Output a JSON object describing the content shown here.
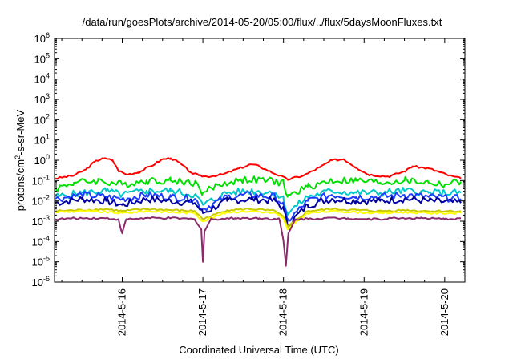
{
  "chart_data": {
    "type": "line",
    "title": "/data/run/goesPlots/archive/2014-05-20/05:00/flux/../flux/5daysMoonFluxes.txt",
    "xlabel": "Coordinated Universal Time (UTC)",
    "ylabel": {
      "prefix": "protons/cm",
      "sup": "2",
      "suffix": "-s-sr-MeV"
    },
    "yscale": "log",
    "ylim_exponents": [
      -6,
      6
    ],
    "y_ticks": [
      {
        "base": "10",
        "exp": "-6"
      },
      {
        "base": "10",
        "exp": "-5"
      },
      {
        "base": "10",
        "exp": "-4"
      },
      {
        "base": "10",
        "exp": "-3"
      },
      {
        "base": "10",
        "exp": "-2"
      },
      {
        "base": "10",
        "exp": "-1"
      },
      {
        "base": "10",
        "exp": "0"
      },
      {
        "base": "10",
        "exp": "1"
      },
      {
        "base": "10",
        "exp": "2"
      },
      {
        "base": "10",
        "exp": "3"
      },
      {
        "base": "10",
        "exp": "4"
      },
      {
        "base": "10",
        "exp": "5"
      },
      {
        "base": "10",
        "exp": "6"
      }
    ],
    "x_range_days": [
      "2014-05-15 04:00",
      "2014-05-20 05:00"
    ],
    "x_tick_labels": [
      "2014-5-16",
      "2014-5-17",
      "2014-5-18",
      "2014-5-19",
      "2014-5-20"
    ],
    "grid": false,
    "legend": "none",
    "series": [
      {
        "color": "#ff0000",
        "points": [
          [
            -0.83,
            -0.9
          ],
          [
            -0.6,
            -0.75
          ],
          [
            -0.45,
            -0.45
          ],
          [
            -0.35,
            -0.1
          ],
          [
            -0.25,
            0.1
          ],
          [
            -0.12,
            0.0
          ],
          [
            -0.05,
            -0.5
          ],
          [
            0.05,
            -0.7
          ],
          [
            0.2,
            -0.6
          ],
          [
            0.35,
            -0.3
          ],
          [
            0.5,
            0.05
          ],
          [
            0.6,
            0.1
          ],
          [
            0.7,
            -0.1
          ],
          [
            0.85,
            -0.6
          ],
          [
            0.95,
            -0.75
          ],
          [
            1.05,
            -0.8
          ],
          [
            1.25,
            -0.7
          ],
          [
            1.45,
            -0.4
          ],
          [
            1.6,
            -0.2
          ],
          [
            1.7,
            -0.3
          ],
          [
            1.8,
            -0.5
          ],
          [
            1.95,
            -0.75
          ],
          [
            2.05,
            -0.95
          ],
          [
            2.25,
            -0.75
          ],
          [
            2.45,
            -0.35
          ],
          [
            2.6,
            0.0
          ],
          [
            2.75,
            0.05
          ],
          [
            2.9,
            -0.35
          ],
          [
            3.05,
            -0.7
          ],
          [
            3.3,
            -0.8
          ],
          [
            3.5,
            -0.55
          ],
          [
            3.6,
            -0.3
          ],
          [
            3.8,
            -0.4
          ],
          [
            3.95,
            -0.6
          ],
          [
            4.05,
            -0.75
          ],
          [
            4.2,
            -0.9
          ]
        ]
      },
      {
        "color": "#00e000",
        "points": [
          [
            -0.83,
            -1.4
          ],
          [
            -0.6,
            -1.1
          ],
          [
            -0.3,
            -1.0
          ],
          [
            0.0,
            -1.2
          ],
          [
            0.3,
            -1.0
          ],
          [
            0.6,
            -1.0
          ],
          [
            0.9,
            -1.1
          ],
          [
            1.0,
            -1.6
          ],
          [
            1.2,
            -1.2
          ],
          [
            1.5,
            -0.95
          ],
          [
            1.8,
            -1.0
          ],
          [
            2.0,
            -1.1
          ],
          [
            2.05,
            -1.8
          ],
          [
            2.3,
            -1.3
          ],
          [
            2.6,
            -1.0
          ],
          [
            2.9,
            -1.0
          ],
          [
            3.2,
            -1.1
          ],
          [
            3.5,
            -1.0
          ],
          [
            3.8,
            -1.1
          ],
          [
            4.0,
            -1.2
          ],
          [
            4.2,
            -1.05
          ]
        ]
      },
      {
        "color": "#00c8c8",
        "points": [
          [
            -0.83,
            -1.8
          ],
          [
            -0.5,
            -1.6
          ],
          [
            -0.2,
            -1.5
          ],
          [
            0.0,
            -1.7
          ],
          [
            0.3,
            -1.5
          ],
          [
            0.6,
            -1.5
          ],
          [
            0.9,
            -1.7
          ],
          [
            1.0,
            -2.2
          ],
          [
            1.3,
            -1.6
          ],
          [
            1.6,
            -1.5
          ],
          [
            1.9,
            -1.6
          ],
          [
            2.0,
            -1.9
          ],
          [
            2.05,
            -2.6
          ],
          [
            2.3,
            -1.8
          ],
          [
            2.6,
            -1.5
          ],
          [
            2.9,
            -1.6
          ],
          [
            3.2,
            -1.6
          ],
          [
            3.5,
            -1.5
          ],
          [
            3.8,
            -1.6
          ],
          [
            4.2,
            -1.6
          ]
        ]
      },
      {
        "color": "#1e3cff",
        "points": [
          [
            -0.83,
            -1.9
          ],
          [
            -0.5,
            -1.7
          ],
          [
            -0.2,
            -1.8
          ],
          [
            0.0,
            -1.9
          ],
          [
            0.3,
            -1.7
          ],
          [
            0.6,
            -1.8
          ],
          [
            0.9,
            -1.9
          ],
          [
            1.0,
            -2.4
          ],
          [
            1.3,
            -1.8
          ],
          [
            1.6,
            -1.7
          ],
          [
            1.9,
            -1.8
          ],
          [
            2.0,
            -2.2
          ],
          [
            2.05,
            -3.0
          ],
          [
            2.3,
            -2.0
          ],
          [
            2.6,
            -1.7
          ],
          [
            2.9,
            -1.8
          ],
          [
            3.2,
            -1.8
          ],
          [
            3.5,
            -1.7
          ],
          [
            3.8,
            -1.8
          ],
          [
            4.2,
            -1.9
          ]
        ]
      },
      {
        "color": "#0000a0",
        "points": [
          [
            -0.83,
            -2.1
          ],
          [
            -0.5,
            -1.9
          ],
          [
            -0.2,
            -2.0
          ],
          [
            0.0,
            -2.2
          ],
          [
            0.3,
            -1.9
          ],
          [
            0.6,
            -2.0
          ],
          [
            0.9,
            -2.1
          ],
          [
            1.0,
            -2.6
          ],
          [
            1.3,
            -2.0
          ],
          [
            1.6,
            -1.9
          ],
          [
            1.9,
            -2.0
          ],
          [
            2.0,
            -2.4
          ],
          [
            2.05,
            -3.2
          ],
          [
            2.3,
            -2.2
          ],
          [
            2.6,
            -1.9
          ],
          [
            2.9,
            -2.0
          ],
          [
            3.2,
            -2.0
          ],
          [
            3.5,
            -1.9
          ],
          [
            3.8,
            -2.0
          ],
          [
            4.2,
            -2.1
          ]
        ]
      },
      {
        "color": "#c8c800",
        "points": [
          [
            -0.83,
            -2.5
          ],
          [
            -0.5,
            -2.45
          ],
          [
            -0.2,
            -2.4
          ],
          [
            0.0,
            -2.5
          ],
          [
            0.3,
            -2.4
          ],
          [
            0.6,
            -2.45
          ],
          [
            0.9,
            -2.5
          ],
          [
            1.0,
            -2.9
          ],
          [
            1.3,
            -2.45
          ],
          [
            1.6,
            -2.4
          ],
          [
            1.9,
            -2.5
          ],
          [
            2.0,
            -2.8
          ],
          [
            2.05,
            -3.3
          ],
          [
            2.3,
            -2.5
          ],
          [
            2.6,
            -2.4
          ],
          [
            2.9,
            -2.45
          ],
          [
            3.2,
            -2.5
          ],
          [
            3.5,
            -2.45
          ],
          [
            3.8,
            -2.5
          ],
          [
            4.2,
            -2.5
          ]
        ]
      },
      {
        "color": "#ffff00",
        "points": [
          [
            -0.83,
            -2.55
          ],
          [
            -0.5,
            -2.5
          ],
          [
            -0.2,
            -2.55
          ],
          [
            0.0,
            -2.6
          ],
          [
            0.3,
            -2.5
          ],
          [
            0.6,
            -2.55
          ],
          [
            0.9,
            -2.6
          ],
          [
            1.0,
            -3.0
          ],
          [
            1.3,
            -2.55
          ],
          [
            1.6,
            -2.5
          ],
          [
            1.9,
            -2.6
          ],
          [
            2.0,
            -2.9
          ],
          [
            2.05,
            -3.4
          ],
          [
            2.3,
            -2.6
          ],
          [
            2.6,
            -2.5
          ],
          [
            2.9,
            -2.55
          ],
          [
            3.2,
            -2.6
          ],
          [
            3.5,
            -2.55
          ],
          [
            3.8,
            -2.6
          ],
          [
            4.2,
            -2.6
          ]
        ]
      },
      {
        "color": "#8b2a6e",
        "points": [
          [
            -0.83,
            -2.9
          ],
          [
            -0.5,
            -2.85
          ],
          [
            -0.2,
            -2.85
          ],
          [
            -0.05,
            -2.9
          ],
          [
            0.0,
            -3.6
          ],
          [
            0.05,
            -2.9
          ],
          [
            0.3,
            -2.85
          ],
          [
            0.6,
            -2.85
          ],
          [
            0.9,
            -2.9
          ],
          [
            0.98,
            -3.4
          ],
          [
            1.0,
            -5.0
          ],
          [
            1.02,
            -3.5
          ],
          [
            1.1,
            -2.9
          ],
          [
            1.4,
            -2.85
          ],
          [
            1.7,
            -2.85
          ],
          [
            1.95,
            -2.9
          ],
          [
            2.0,
            -4.0
          ],
          [
            2.03,
            -5.2
          ],
          [
            2.06,
            -3.6
          ],
          [
            2.15,
            -2.9
          ],
          [
            2.5,
            -2.85
          ],
          [
            2.8,
            -2.85
          ],
          [
            3.1,
            -2.9
          ],
          [
            3.4,
            -2.85
          ],
          [
            3.7,
            -2.85
          ],
          [
            4.0,
            -2.9
          ],
          [
            4.2,
            -2.85
          ]
        ]
      }
    ]
  }
}
